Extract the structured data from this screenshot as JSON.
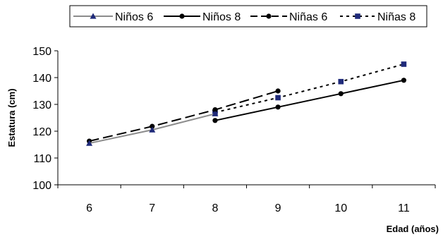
{
  "chart_data": {
    "type": "line",
    "title": "",
    "xlabel": "Edad (años)",
    "ylabel": "Estatura (cm)",
    "ylim": [
      100,
      150
    ],
    "yticks": [
      100,
      110,
      120,
      130,
      140,
      150
    ],
    "categories": [
      "6",
      "7",
      "8",
      "9",
      "10",
      "11"
    ],
    "grid": false,
    "legend_position": "top",
    "series": [
      {
        "name": "Niños 6",
        "x": [
          6,
          7,
          8
        ],
        "values": [
          115.5,
          120.5,
          126.5
        ],
        "color": "#8c8c8c",
        "dash": "solid",
        "marker": "triangle",
        "marker_color": "#1f2a7a"
      },
      {
        "name": "Niños 8",
        "x": [
          8,
          9,
          10,
          11
        ],
        "values": [
          124,
          129,
          134,
          139
        ],
        "color": "#000000",
        "dash": "solid",
        "marker": "circle",
        "marker_color": "#000000"
      },
      {
        "name": "Niñas 6",
        "x": [
          6,
          7,
          8,
          9
        ],
        "values": [
          116.3,
          121.8,
          128,
          135
        ],
        "color": "#000000",
        "dash": "long-dash",
        "marker": "circle",
        "marker_color": "#000000"
      },
      {
        "name": "Niñas 8",
        "x": [
          8,
          9,
          10,
          11
        ],
        "values": [
          127,
          132.5,
          138.5,
          145
        ],
        "color": "#000000",
        "dash": "dotted",
        "marker": "square",
        "marker_color": "#1f2a7a"
      }
    ]
  }
}
